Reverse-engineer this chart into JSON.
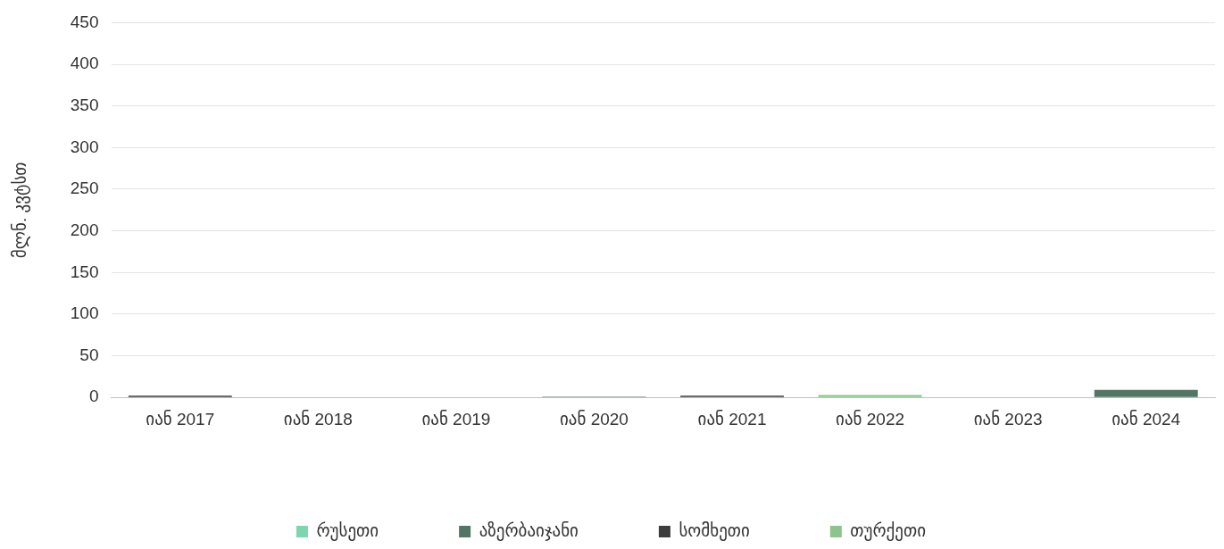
{
  "chart_data": {
    "type": "bar",
    "stacked": true,
    "ylabel": "მლნ. კვტსთ",
    "categories": [
      "იან 2017",
      "იან 2018",
      "იან 2019",
      "იან 2020",
      "იან 2021",
      "იან 2022",
      "იან 2023",
      "იან 2024"
    ],
    "series": [
      {
        "name": "რუსეთი",
        "color": "#7dd6ad",
        "values": [
          0,
          0,
          0,
          0,
          0,
          0,
          0,
          0
        ]
      },
      {
        "name": "აზერბაიჯანი",
        "color": "#537565",
        "values": [
          0,
          0,
          0,
          1,
          0,
          0,
          0,
          9
        ]
      },
      {
        "name": "სომხეთი",
        "color": "#3d3d3d",
        "values": [
          2,
          0,
          0,
          0,
          2,
          0,
          0,
          0
        ]
      },
      {
        "name": "თურქეთი",
        "color": "#8cc48c",
        "values": [
          0,
          0,
          0,
          0,
          0,
          3,
          0,
          0
        ]
      }
    ],
    "ylim": [
      0,
      450
    ],
    "yticks": [
      0,
      50,
      100,
      150,
      200,
      250,
      300,
      350,
      400,
      450
    ],
    "grid": "y",
    "legend": "bottom"
  }
}
